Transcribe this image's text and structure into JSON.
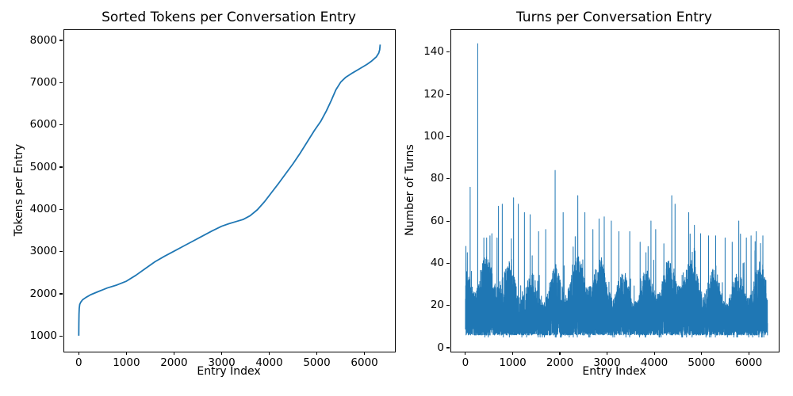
{
  "figure": {
    "background": "#ffffff",
    "accent_color": "#1f77b4",
    "text_color": "#000000"
  },
  "chart_data": [
    {
      "type": "line",
      "title": "Sorted Tokens per Conversation Entry",
      "xlabel": "Entry Index",
      "ylabel": "Tokens per Entry",
      "xticks": [
        0,
        1000,
        2000,
        3000,
        4000,
        5000,
        6000
      ],
      "yticks": [
        1000,
        2000,
        3000,
        4000,
        5000,
        6000,
        7000,
        8000
      ],
      "xlim": [
        -322,
        6623
      ],
      "ylim": [
        651,
        8262
      ],
      "grid": false,
      "legend": null,
      "line_color": "#1f77b4",
      "line_width": 1.8,
      "n_points": 6330,
      "y_start": 1010,
      "y_end": 7900,
      "points": [
        [
          0,
          1010
        ],
        [
          2,
          1300
        ],
        [
          5,
          1520
        ],
        [
          10,
          1660
        ],
        [
          20,
          1750
        ],
        [
          40,
          1800
        ],
        [
          80,
          1860
        ],
        [
          150,
          1915
        ],
        [
          250,
          1980
        ],
        [
          400,
          2050
        ],
        [
          600,
          2140
        ],
        [
          800,
          2210
        ],
        [
          1000,
          2300
        ],
        [
          1200,
          2440
        ],
        [
          1400,
          2600
        ],
        [
          1600,
          2760
        ],
        [
          1800,
          2890
        ],
        [
          2000,
          3010
        ],
        [
          2200,
          3130
        ],
        [
          2400,
          3250
        ],
        [
          2600,
          3370
        ],
        [
          2800,
          3490
        ],
        [
          3000,
          3600
        ],
        [
          3150,
          3660
        ],
        [
          3300,
          3710
        ],
        [
          3450,
          3760
        ],
        [
          3600,
          3850
        ],
        [
          3750,
          3990
        ],
        [
          3900,
          4180
        ],
        [
          4050,
          4400
        ],
        [
          4200,
          4620
        ],
        [
          4350,
          4850
        ],
        [
          4500,
          5080
        ],
        [
          4650,
          5330
        ],
        [
          4800,
          5600
        ],
        [
          4950,
          5870
        ],
        [
          5080,
          6080
        ],
        [
          5200,
          6330
        ],
        [
          5300,
          6570
        ],
        [
          5400,
          6830
        ],
        [
          5500,
          7010
        ],
        [
          5600,
          7120
        ],
        [
          5750,
          7230
        ],
        [
          5900,
          7330
        ],
        [
          6050,
          7430
        ],
        [
          6150,
          7510
        ],
        [
          6250,
          7610
        ],
        [
          6300,
          7700
        ],
        [
          6320,
          7780
        ],
        [
          6330,
          7900
        ]
      ]
    },
    {
      "type": "line",
      "title": "Turns per Conversation Entry",
      "xlabel": "Entry Index",
      "ylabel": "Number of Turns",
      "xticks": [
        0,
        1000,
        2000,
        3000,
        4000,
        5000,
        6000
      ],
      "yticks": [
        0,
        20,
        40,
        60,
        80,
        100,
        120,
        140
      ],
      "xlim": [
        -318,
        6619
      ],
      "ylim": [
        -1.5,
        150.8
      ],
      "grid": false,
      "legend": null,
      "line_color": "#1f77b4",
      "line_width": 1.0,
      "n_points": 6400,
      "baseline": 6,
      "max_value": 144,
      "noise": {
        "seed": 1337,
        "amp": 34,
        "power": 1.5,
        "spike_prob": 0.025,
        "spike_amp": 20,
        "dip_prob": 0.008,
        "dip_value": 5
      },
      "spikes": [
        [
          10,
          48
        ],
        [
          40,
          45
        ],
        [
          100,
          76
        ],
        [
          260,
          144
        ],
        [
          390,
          52
        ],
        [
          450,
          52
        ],
        [
          520,
          53
        ],
        [
          560,
          54
        ],
        [
          670,
          52
        ],
        [
          700,
          67
        ],
        [
          780,
          68
        ],
        [
          1020,
          71
        ],
        [
          1120,
          68
        ],
        [
          1250,
          64
        ],
        [
          1370,
          63
        ],
        [
          1550,
          55
        ],
        [
          1700,
          56
        ],
        [
          1900,
          84
        ],
        [
          2070,
          64
        ],
        [
          2380,
          72
        ],
        [
          2530,
          64
        ],
        [
          2700,
          56
        ],
        [
          2830,
          61
        ],
        [
          2940,
          62
        ],
        [
          3090,
          60
        ],
        [
          3250,
          55
        ],
        [
          3480,
          55
        ],
        [
          3700,
          50
        ],
        [
          3930,
          60
        ],
        [
          4030,
          56
        ],
        [
          4370,
          72
        ],
        [
          4440,
          68
        ],
        [
          4730,
          64
        ],
        [
          4850,
          58
        ],
        [
          4980,
          54
        ],
        [
          5150,
          53
        ],
        [
          5300,
          53
        ],
        [
          5500,
          52
        ],
        [
          5650,
          50
        ],
        [
          5790,
          60
        ],
        [
          5950,
          52
        ],
        [
          6050,
          53
        ],
        [
          6160,
          55
        ],
        [
          6300,
          53
        ]
      ]
    }
  ]
}
